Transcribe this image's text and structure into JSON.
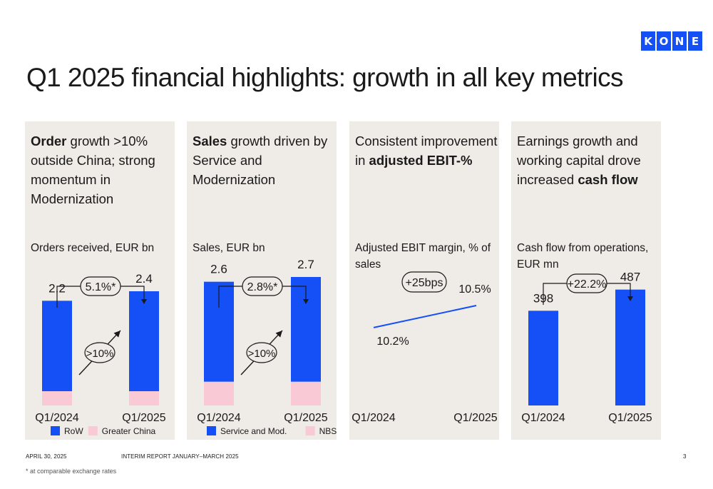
{
  "logo": [
    "K",
    "O",
    "N",
    "E"
  ],
  "title": "Q1 2025 financial highlights: growth in all key metrics",
  "panels": [
    {
      "pre": "",
      "bold": "Order",
      "post": " growth >10% outside China; strong momentum in Modernization",
      "subtitle": "Orders received, EUR bn"
    },
    {
      "pre": "",
      "bold": "Sales",
      "post": " growth driven by Service and Modernization",
      "subtitle": "Sales, EUR bn"
    },
    {
      "pre": "Consistent improvement in ",
      "bold": "adjusted EBIT-%",
      "post": "",
      "subtitle": "Adjusted EBIT margin, % of sales"
    },
    {
      "pre": "Earnings growth and working capital drove increased ",
      "bold": "cash flow",
      "post": "",
      "subtitle": "Cash flow from operations, EUR mn"
    }
  ],
  "colors": {
    "blue": "#1450f5",
    "pink": "#f9c9d6",
    "panel": "#efebe7"
  },
  "chart_data": [
    {
      "type": "bar",
      "title": "Orders received, EUR bn",
      "categories": [
        "Q1/2024",
        "Q1/2025"
      ],
      "series": [
        {
          "name": "RoW",
          "values": [
            1.9,
            2.1
          ],
          "color": "#1450f5"
        },
        {
          "name": "Greater China",
          "values": [
            0.3,
            0.3
          ],
          "color": "#f9c9d6"
        }
      ],
      "totals": [
        "2.2",
        "2.4"
      ],
      "ylim": [
        0,
        3
      ],
      "growth_label": "5.1%*",
      "segment_label": ">10%"
    },
    {
      "type": "bar",
      "title": "Sales, EUR bn",
      "categories": [
        "Q1/2024",
        "Q1/2025"
      ],
      "series": [
        {
          "name": "Service and Mod.",
          "values": [
            2.1,
            2.2
          ],
          "color": "#1450f5"
        },
        {
          "name": "NBS",
          "values": [
            0.5,
            0.5
          ],
          "color": "#f9c9d6"
        }
      ],
      "totals": [
        "2.6",
        "2.7"
      ],
      "ylim": [
        0,
        3
      ],
      "growth_label": "2.8%*",
      "segment_label": ">10%"
    },
    {
      "type": "line",
      "title": "Adjusted EBIT margin, % of sales",
      "x": [
        "Q1/2024",
        "Q1/2025"
      ],
      "series": [
        {
          "values": [
            10.2,
            10.5
          ],
          "color": "#1450f5"
        }
      ],
      "point_labels": [
        "10.2%",
        "10.5%"
      ],
      "ylim": [
        10.15,
        10.5
      ],
      "growth_label": "+25bps"
    },
    {
      "type": "bar",
      "title": "Cash flow from operations, EUR mn",
      "categories": [
        "Q1/2024",
        "Q1/2025"
      ],
      "series": [
        {
          "values": [
            398,
            487
          ],
          "color": "#1450f5"
        }
      ],
      "totals": [
        "398",
        "487"
      ],
      "ylim": [
        0,
        600
      ],
      "growth_label": "+22.2%"
    }
  ],
  "footer": {
    "date": "APRIL 30, 2025",
    "report": "INTERIM REPORT JANUARY–MARCH 2025",
    "page": "3",
    "note": "* at comparable exchange rates"
  }
}
